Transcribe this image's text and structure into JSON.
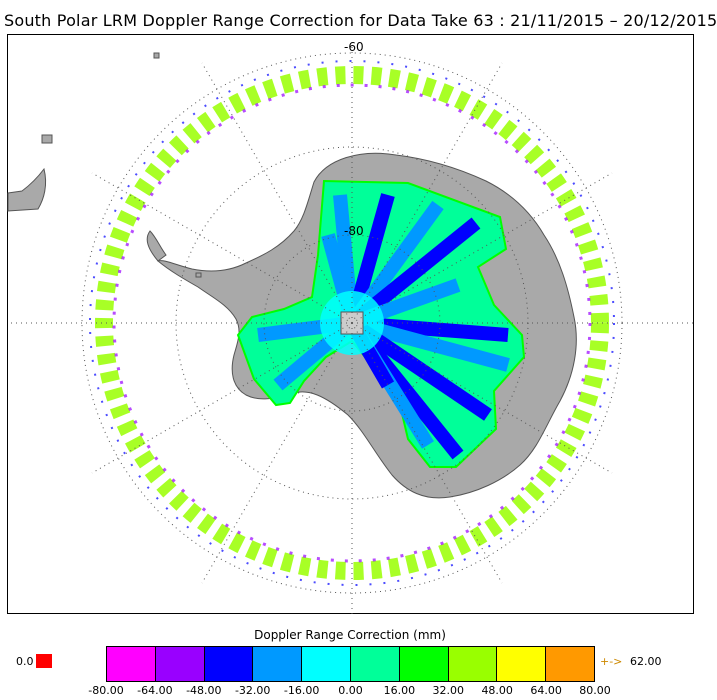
{
  "title": "South Polar LRM Doppler Range Correction for Data Take 63 : 21/11/2015 – 20/12/2015",
  "map": {
    "projection": "south-polar-stereographic",
    "latitude_labels": [
      "-60",
      "-80"
    ],
    "colors": {
      "land": "#a9a9a9",
      "coast": "#555555",
      "graticule": "#555555",
      "frame": "#000000",
      "pole_marker": "#cccccc"
    }
  },
  "legend": {
    "title": "Doppler Range Correction (mm)",
    "below_value": "0.0",
    "below_color": "#ff0000",
    "above_arrow": "+->",
    "above_value": "62.00",
    "above_color": "#cc8800",
    "ticks": [
      "-80.00",
      "-64.00",
      "-48.00",
      "-32.00",
      "-16.00",
      "0.00",
      "16.00",
      "32.00",
      "48.00",
      "64.00",
      "80.00"
    ],
    "colors": [
      "#ff00ff",
      "#9900ff",
      "#0000ff",
      "#0099ff",
      "#00ffff",
      "#00ff99",
      "#00ff00",
      "#99ff00",
      "#ffff00",
      "#ff9900"
    ]
  }
}
